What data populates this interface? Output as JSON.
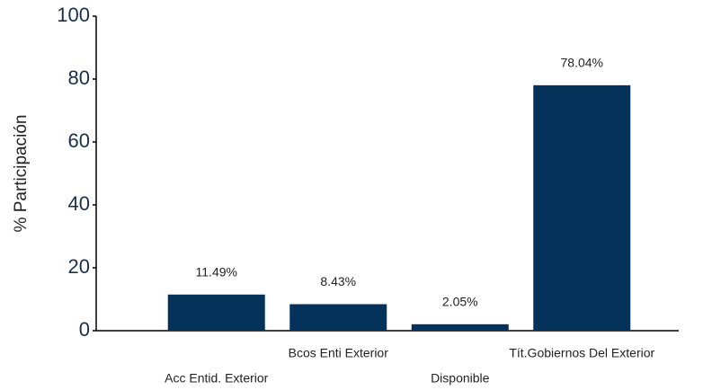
{
  "chart_data": {
    "type": "bar",
    "y_label": "% Participación",
    "categories": [
      "Acc Entid. Exterior",
      "Bcos Enti Exterior",
      "Disponible",
      "Tít.Gobiernos Del Exterior"
    ],
    "values": [
      11.49,
      8.43,
      2.05,
      78.04
    ],
    "value_labels": [
      "11.49%",
      "8.43%",
      "2.05%",
      "78.04%"
    ],
    "color": "#04325a",
    "ylim": [
      0,
      100
    ],
    "yticks": [
      0,
      20,
      40,
      60,
      80,
      100
    ],
    "grid": false
  }
}
